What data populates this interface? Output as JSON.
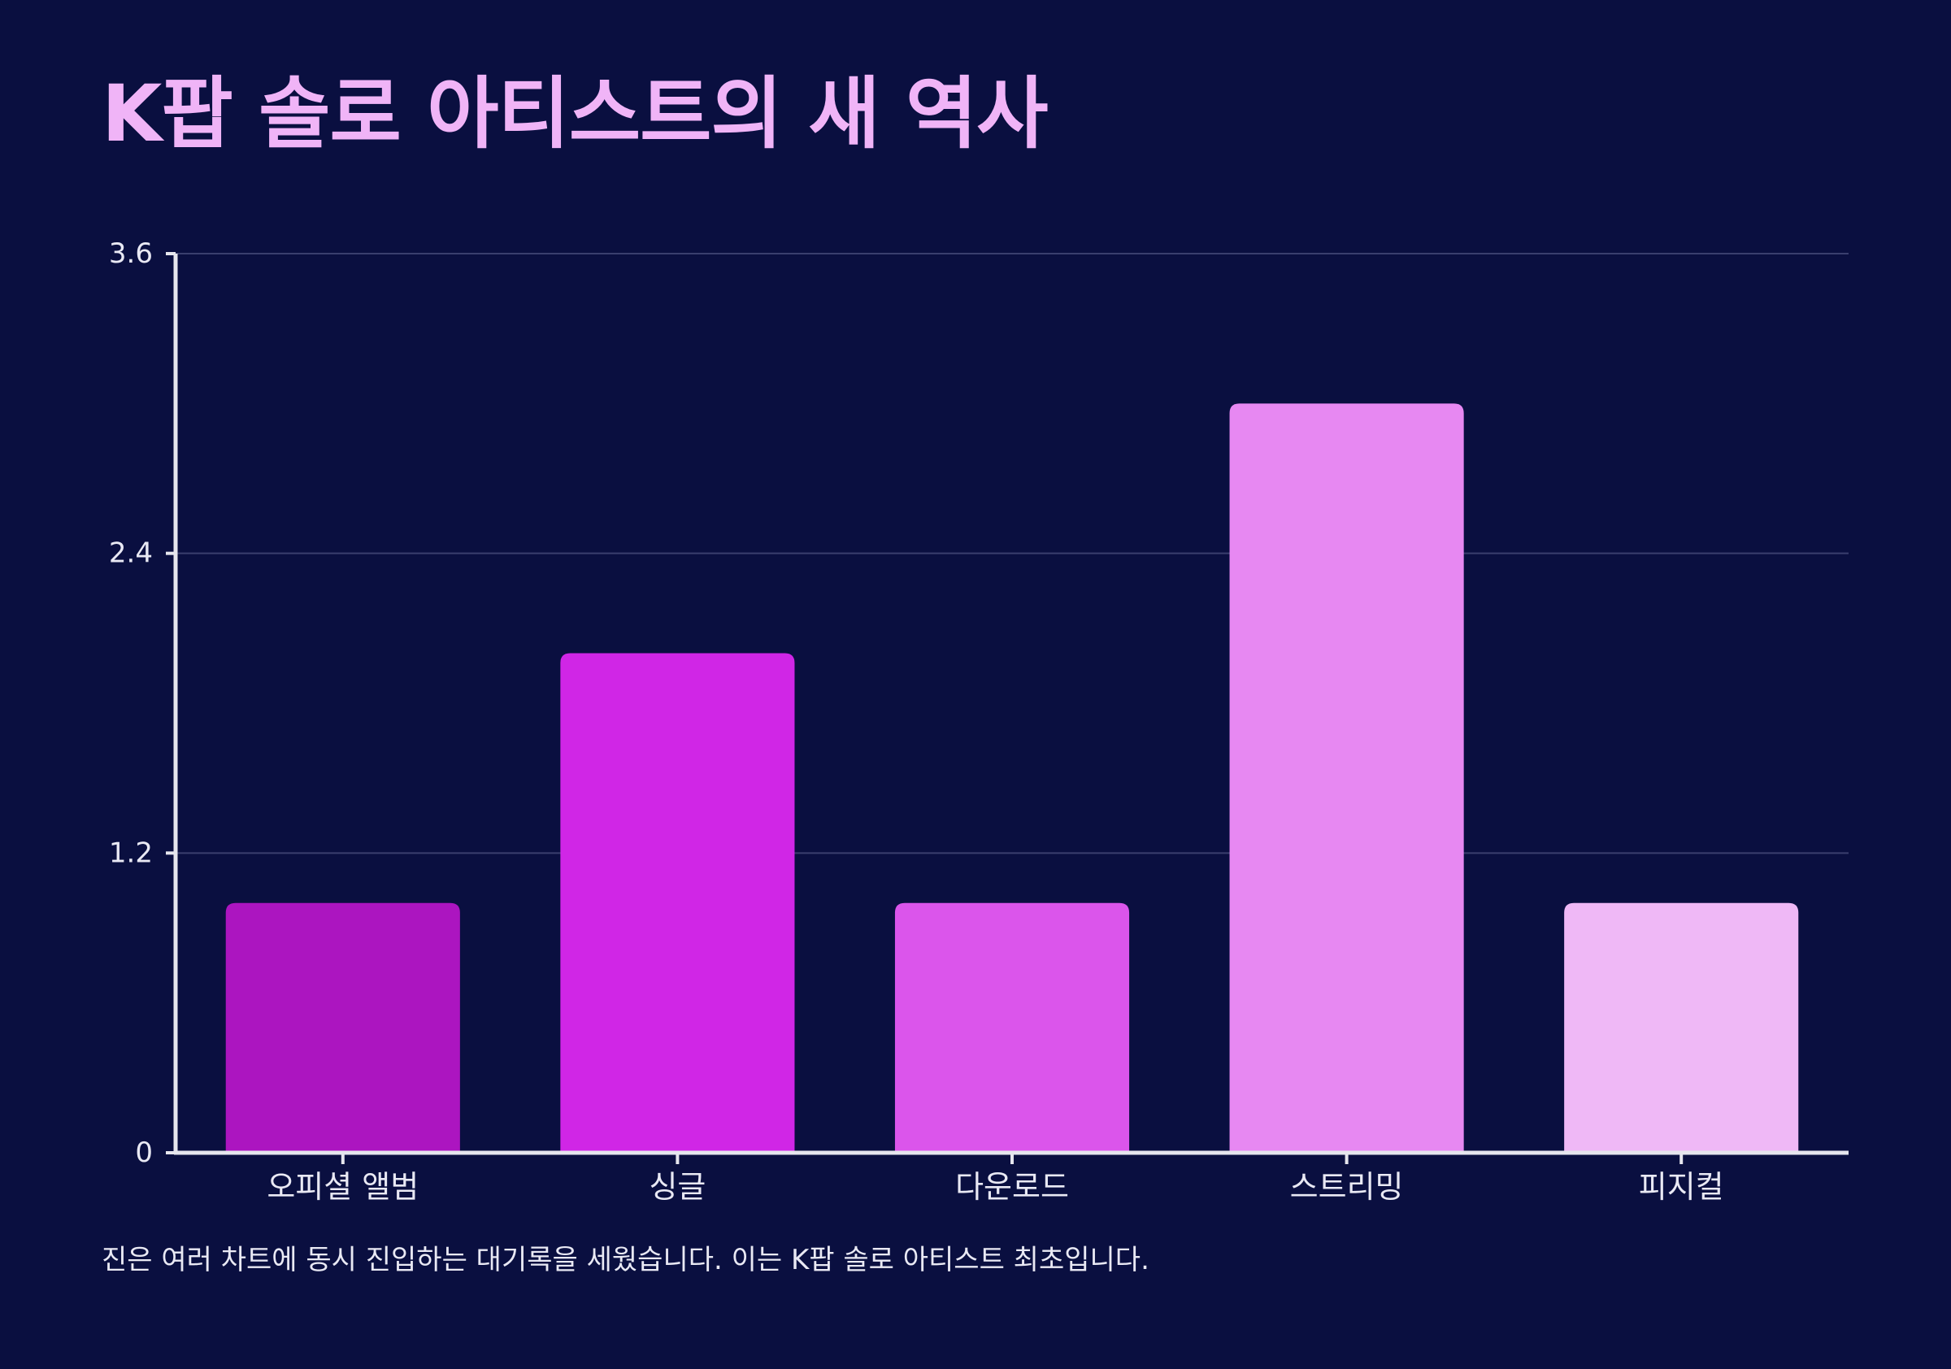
{
  "title": "K팝 솔로 아티스트의 새 역사",
  "caption": "진은 여러 차트에 동시 진입하는 대기록을 세웠습니다. 이는 K팝 솔로 아티스트 최초입니다.",
  "colors": {
    "background": "#0a0f40",
    "title": "#f0b4f7",
    "axis": "#e6e6ee",
    "grid": "#3a3f6e",
    "text": "#e9e9f4"
  },
  "chart_data": {
    "type": "bar",
    "categories": [
      "오피셜 앨범",
      "싱글",
      "다운로드",
      "스트리밍",
      "피지컬"
    ],
    "values": [
      1,
      2,
      1,
      3,
      1
    ],
    "bar_colors": [
      "#ac15c0",
      "#d026e6",
      "#db55eb",
      "#e788f2",
      "#efb8f6"
    ],
    "ylim": [
      0,
      3.6
    ],
    "yticks": [
      0,
      1.2,
      2.4,
      3.6
    ],
    "ytick_labels": [
      "0",
      "1.2",
      "2.4",
      "3.6"
    ],
    "xlabel": "",
    "ylabel": "",
    "grid": true,
    "legend": "none"
  }
}
